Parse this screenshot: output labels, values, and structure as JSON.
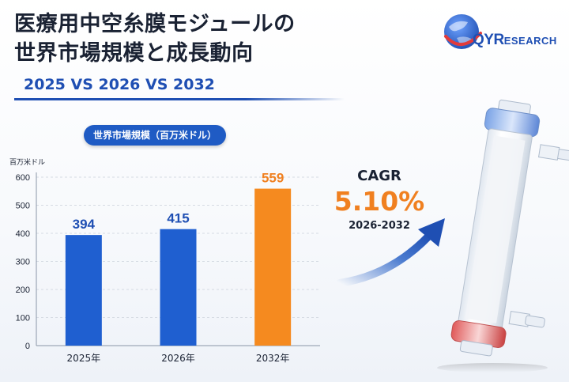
{
  "header": {
    "title_line1": "医療用中空糸膜モジュールの",
    "title_line2": "世界市場規模と成長動向",
    "subtitle": "2025 VS 2026 VS 2032"
  },
  "logo": {
    "brand_main": "QYR",
    "brand_rest": "ESEARCH"
  },
  "chart_pill": "世界市場規模（百万米ドル）",
  "chart_data": {
    "type": "bar",
    "categories": [
      "2025年",
      "2026年",
      "2032年"
    ],
    "values": [
      394,
      415,
      559
    ],
    "ylabel": "百万米ドル",
    "ylim": [
      0,
      600
    ],
    "yticks": [
      0,
      100,
      200,
      300,
      400,
      500,
      600
    ],
    "bar_colors": [
      "#1f5fd0",
      "#1f5fd0",
      "#f58a1f"
    ],
    "label_colors": [
      "#1f4fb3",
      "#1f4fb3",
      "#f08020"
    ],
    "grid": true
  },
  "cagr": {
    "label": "CAGR",
    "value": "5.10%",
    "period": "2026-2032"
  },
  "colors": {
    "accent_blue": "#1f5bc4",
    "accent_orange": "#f08020"
  }
}
